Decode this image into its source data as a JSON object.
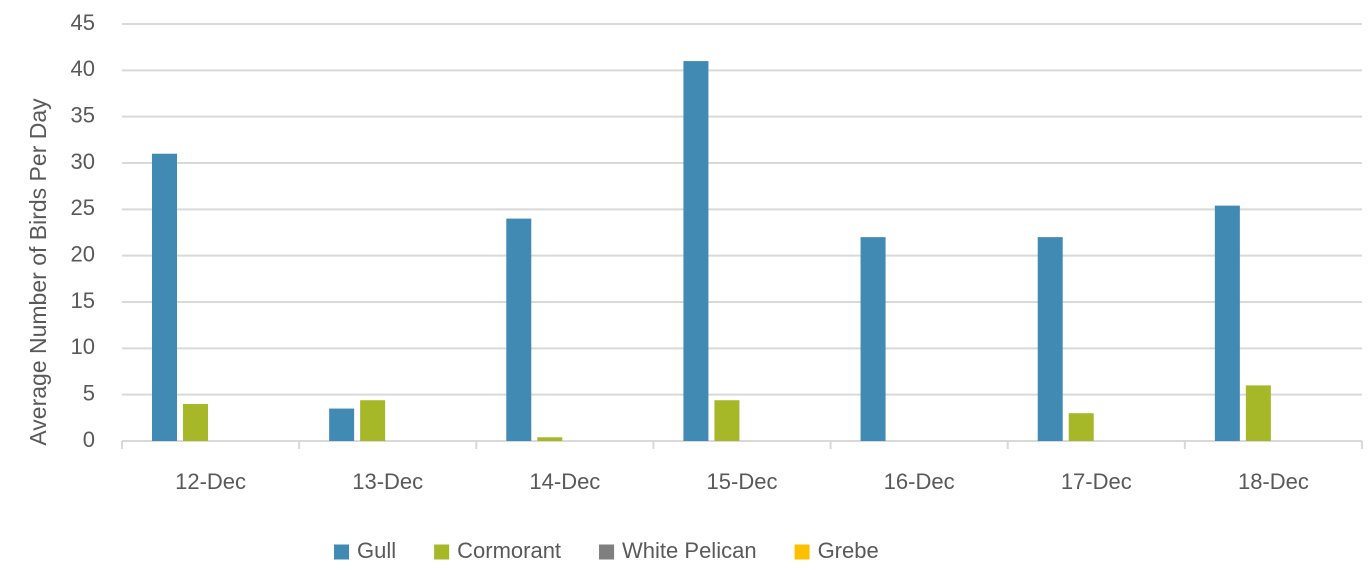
{
  "chart_data": {
    "type": "bar",
    "title": "",
    "xlabel": "",
    "ylabel": "Average Number of Birds Per Day",
    "ylim": [
      0,
      45
    ],
    "y_ticks": [
      0,
      5,
      10,
      15,
      20,
      25,
      30,
      35,
      40,
      45
    ],
    "grid": true,
    "legend_position": "bottom",
    "categories": [
      "12-Dec",
      "13-Dec",
      "14-Dec",
      "15-Dec",
      "16-Dec",
      "17-Dec",
      "18-Dec"
    ],
    "series": [
      {
        "name": "Gull",
        "color": "#418ab3",
        "values": [
          31,
          3.5,
          24,
          41,
          22,
          22,
          25.4
        ]
      },
      {
        "name": "Cormorant",
        "color": "#a6b727",
        "values": [
          4,
          4.4,
          0.4,
          4.4,
          0,
          3,
          6
        ]
      },
      {
        "name": "White Pelican",
        "color": "#7f7f7f",
        "values": [
          0,
          0,
          0,
          0,
          0,
          0,
          0
        ]
      },
      {
        "name": "Grebe",
        "color": "#ffc000",
        "values": [
          0,
          0,
          0,
          0,
          0,
          0,
          0
        ]
      }
    ]
  }
}
